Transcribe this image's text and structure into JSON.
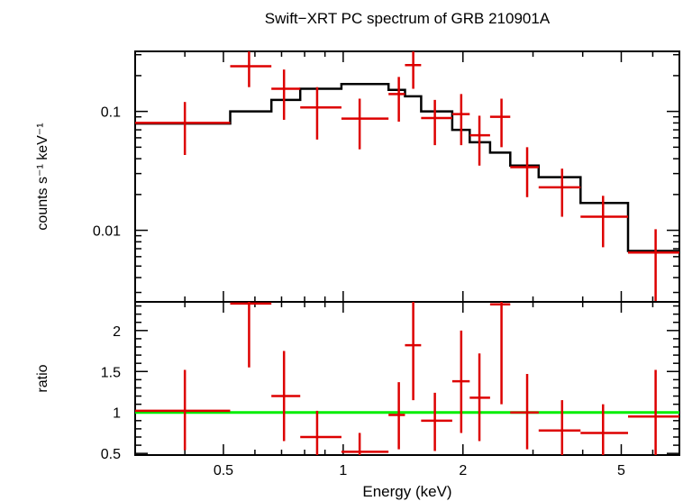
{
  "chart_data": [
    {
      "type": "scatter",
      "title": "Swift−XRT PC spectrum of GRB 210901A",
      "ylabel": "counts s⁻¹ keV⁻¹",
      "xscale": "log",
      "yscale": "log",
      "xlim": [
        0.3,
        7.0
      ],
      "ylim": [
        0.0025,
        0.32
      ],
      "x_ticks": [
        {
          "value": 0.5,
          "label": "0.5"
        },
        {
          "value": 1,
          "label": "1"
        },
        {
          "value": 2,
          "label": "2"
        },
        {
          "value": 5,
          "label": "5"
        }
      ],
      "y_ticks": [
        {
          "value": 0.1,
          "label": "0.1"
        },
        {
          "value": 0.01,
          "label": "0.01"
        }
      ],
      "data_color": "#dd0000",
      "model_color": "#000000",
      "data_points": [
        {
          "x": 0.4,
          "xlo": 0.3,
          "xhi": 0.52,
          "y": 0.08,
          "ylo": 0.043,
          "yhi": 0.12
        },
        {
          "x": 0.58,
          "xlo": 0.52,
          "xhi": 0.66,
          "y": 0.24,
          "ylo": 0.16,
          "yhi": 0.32
        },
        {
          "x": 0.71,
          "xlo": 0.66,
          "xhi": 0.78,
          "y": 0.155,
          "ylo": 0.085,
          "yhi": 0.225
        },
        {
          "x": 0.86,
          "xlo": 0.78,
          "xhi": 0.99,
          "y": 0.108,
          "ylo": 0.058,
          "yhi": 0.16
        },
        {
          "x": 1.1,
          "xlo": 0.99,
          "xhi": 1.3,
          "y": 0.087,
          "ylo": 0.048,
          "yhi": 0.128
        },
        {
          "x": 1.38,
          "xlo": 1.3,
          "xhi": 1.43,
          "y": 0.14,
          "ylo": 0.082,
          "yhi": 0.195
        },
        {
          "x": 1.5,
          "xlo": 1.43,
          "xhi": 1.57,
          "y": 0.245,
          "ylo": 0.155,
          "yhi": 0.32
        },
        {
          "x": 1.7,
          "xlo": 1.57,
          "xhi": 1.88,
          "y": 0.088,
          "ylo": 0.052,
          "yhi": 0.125
        },
        {
          "x": 1.98,
          "xlo": 1.88,
          "xhi": 2.08,
          "y": 0.095,
          "ylo": 0.052,
          "yhi": 0.14
        },
        {
          "x": 2.2,
          "xlo": 2.08,
          "xhi": 2.34,
          "y": 0.063,
          "ylo": 0.035,
          "yhi": 0.092
        },
        {
          "x": 2.5,
          "xlo": 2.34,
          "xhi": 2.63,
          "y": 0.09,
          "ylo": 0.05,
          "yhi": 0.128
        },
        {
          "x": 2.9,
          "xlo": 2.63,
          "xhi": 3.1,
          "y": 0.034,
          "ylo": 0.019,
          "yhi": 0.05
        },
        {
          "x": 3.55,
          "xlo": 3.1,
          "xhi": 3.95,
          "y": 0.023,
          "ylo": 0.013,
          "yhi": 0.033
        },
        {
          "x": 4.5,
          "xlo": 3.95,
          "xhi": 5.2,
          "y": 0.013,
          "ylo": 0.0072,
          "yhi": 0.0195
        },
        {
          "x": 6.1,
          "xlo": 5.2,
          "xhi": 7.0,
          "y": 0.0065,
          "ylo": 0.0025,
          "yhi": 0.0102
        }
      ],
      "model_steps": [
        {
          "xlo": 0.3,
          "xhi": 0.52,
          "y": 0.079
        },
        {
          "xlo": 0.52,
          "xhi": 0.66,
          "y": 0.1
        },
        {
          "xlo": 0.66,
          "xhi": 0.78,
          "y": 0.125
        },
        {
          "xlo": 0.78,
          "xhi": 0.99,
          "y": 0.155
        },
        {
          "xlo": 0.99,
          "xhi": 1.3,
          "y": 0.17
        },
        {
          "xlo": 1.3,
          "xhi": 1.43,
          "y": 0.152
        },
        {
          "xlo": 1.43,
          "xhi": 1.57,
          "y": 0.134
        },
        {
          "xlo": 1.57,
          "xhi": 1.88,
          "y": 0.1
        },
        {
          "xlo": 1.88,
          "xhi": 2.08,
          "y": 0.07
        },
        {
          "xlo": 2.08,
          "xhi": 2.34,
          "y": 0.055
        },
        {
          "xlo": 2.34,
          "xhi": 2.63,
          "y": 0.045
        },
        {
          "xlo": 2.63,
          "xhi": 3.1,
          "y": 0.035
        },
        {
          "xlo": 3.1,
          "xhi": 3.95,
          "y": 0.028
        },
        {
          "xlo": 3.95,
          "xhi": 5.2,
          "y": 0.017
        },
        {
          "xlo": 5.2,
          "xhi": 7.0,
          "y": 0.0067
        }
      ]
    },
    {
      "type": "scatter",
      "xlabel": "Energy (keV)",
      "ylabel": "ratio",
      "xscale": "log",
      "yscale": "linear",
      "xlim": [
        0.3,
        7.0
      ],
      "ylim": [
        0.48,
        2.35
      ],
      "x_ticks": [
        {
          "value": 0.5,
          "label": "0.5"
        },
        {
          "value": 1,
          "label": "1"
        },
        {
          "value": 2,
          "label": "2"
        },
        {
          "value": 5,
          "label": "5"
        }
      ],
      "y_ticks": [
        {
          "value": 0.5,
          "label": "0.5"
        },
        {
          "value": 1,
          "label": "1"
        },
        {
          "value": 1.5,
          "label": "1.5"
        },
        {
          "value": 2,
          "label": "2"
        }
      ],
      "reference_line": {
        "y": 1,
        "color": "#00ee00"
      },
      "data_color": "#dd0000",
      "data_points": [
        {
          "x": 0.4,
          "xlo": 0.3,
          "xhi": 0.52,
          "y": 1.02,
          "ylo": 0.54,
          "yhi": 1.52
        },
        {
          "x": 0.58,
          "xlo": 0.52,
          "xhi": 0.66,
          "y": 2.33,
          "ylo": 1.55,
          "yhi": 2.35
        },
        {
          "x": 0.71,
          "xlo": 0.66,
          "xhi": 0.78,
          "y": 1.2,
          "ylo": 0.65,
          "yhi": 1.75
        },
        {
          "x": 0.86,
          "xlo": 0.78,
          "xhi": 0.99,
          "y": 0.7,
          "ylo": 0.48,
          "yhi": 1.02
        },
        {
          "x": 1.1,
          "xlo": 0.99,
          "xhi": 1.3,
          "y": 0.52,
          "ylo": 0.48,
          "yhi": 0.75
        },
        {
          "x": 1.38,
          "xlo": 1.3,
          "xhi": 1.43,
          "y": 0.97,
          "ylo": 0.55,
          "yhi": 1.37
        },
        {
          "x": 1.5,
          "xlo": 1.43,
          "xhi": 1.57,
          "y": 1.82,
          "ylo": 1.15,
          "yhi": 2.35
        },
        {
          "x": 1.7,
          "xlo": 1.57,
          "xhi": 1.88,
          "y": 0.9,
          "ylo": 0.53,
          "yhi": 1.24
        },
        {
          "x": 1.98,
          "xlo": 1.88,
          "xhi": 2.08,
          "y": 1.38,
          "ylo": 0.75,
          "yhi": 2.0
        },
        {
          "x": 2.2,
          "xlo": 2.08,
          "xhi": 2.34,
          "y": 1.18,
          "ylo": 0.65,
          "yhi": 1.72
        },
        {
          "x": 2.5,
          "xlo": 2.34,
          "xhi": 2.63,
          "y": 2.32,
          "ylo": 1.1,
          "yhi": 2.35
        },
        {
          "x": 2.9,
          "xlo": 2.63,
          "xhi": 3.1,
          "y": 1.0,
          "ylo": 0.55,
          "yhi": 1.47
        },
        {
          "x": 3.55,
          "xlo": 3.1,
          "xhi": 3.95,
          "y": 0.78,
          "ylo": 0.48,
          "yhi": 1.15
        },
        {
          "x": 4.5,
          "xlo": 3.95,
          "xhi": 5.2,
          "y": 0.75,
          "ylo": 0.48,
          "yhi": 1.1
        },
        {
          "x": 6.1,
          "xlo": 5.2,
          "xhi": 7.0,
          "y": 0.95,
          "ylo": 0.48,
          "yhi": 1.52
        }
      ]
    }
  ]
}
